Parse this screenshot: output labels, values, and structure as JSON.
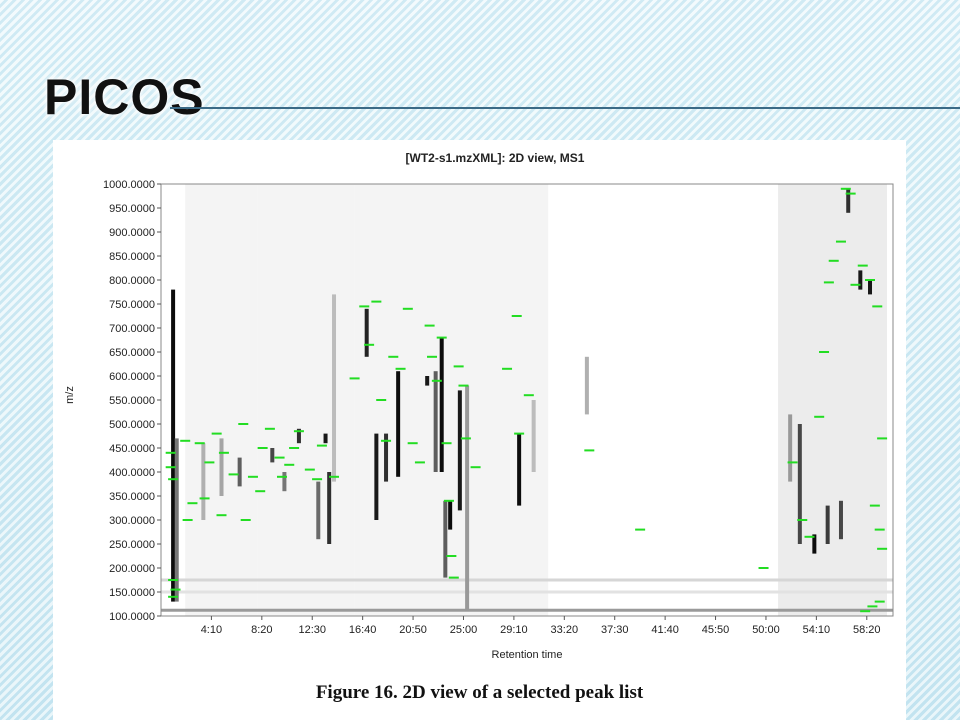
{
  "slide": {
    "title": "PICOS",
    "caption": "Figure 16. 2D view of a selected peak list"
  },
  "colors": {
    "peak_marker": "#22dd22",
    "intensity_dark": "#000000",
    "intensity_light": "#e6e6e6"
  },
  "chart_data": {
    "type": "heatmap",
    "title": "[WT2-s1.mzXML]: 2D view, MS1",
    "xlabel": "Retention time",
    "ylabel": "m/z",
    "xlim": [
      0,
      60.5
    ],
    "ylim": [
      100,
      1000
    ],
    "x_ticks": [
      {
        "value": 4.1667,
        "label": "4:10"
      },
      {
        "value": 8.3333,
        "label": "8:20"
      },
      {
        "value": 12.5,
        "label": "12:30"
      },
      {
        "value": 16.6667,
        "label": "16:40"
      },
      {
        "value": 20.8333,
        "label": "20:50"
      },
      {
        "value": 25.0,
        "label": "25:00"
      },
      {
        "value": 29.1667,
        "label": "29:10"
      },
      {
        "value": 33.3333,
        "label": "33:20"
      },
      {
        "value": 37.5,
        "label": "37:30"
      },
      {
        "value": 41.6667,
        "label": "41:40"
      },
      {
        "value": 45.8333,
        "label": "45:50"
      },
      {
        "value": 50.0,
        "label": "50:00"
      },
      {
        "value": 54.1667,
        "label": "54:10"
      },
      {
        "value": 58.3333,
        "label": "58:20"
      }
    ],
    "y_ticks": [
      {
        "value": 1000,
        "label": "1000.0000"
      },
      {
        "value": 950,
        "label": "950.0000"
      },
      {
        "value": 900,
        "label": "900.0000"
      },
      {
        "value": 850,
        "label": "850.0000"
      },
      {
        "value": 800,
        "label": "800.0000"
      },
      {
        "value": 750,
        "label": "750.0000"
      },
      {
        "value": 700,
        "label": "700.0000"
      },
      {
        "value": 650,
        "label": "650.0000"
      },
      {
        "value": 600,
        "label": "600.0000"
      },
      {
        "value": 550,
        "label": "550.0000"
      },
      {
        "value": 500,
        "label": "500.0000"
      },
      {
        "value": 450,
        "label": "450.0000"
      },
      {
        "value": 400,
        "label": "400.0000"
      },
      {
        "value": 350,
        "label": "350.0000"
      },
      {
        "value": 300,
        "label": "300.0000"
      },
      {
        "value": 250,
        "label": "250.0000"
      },
      {
        "value": 200,
        "label": "200.0000"
      },
      {
        "value": 150,
        "label": "150.0000"
      },
      {
        "value": 100,
        "label": "100.0000"
      }
    ],
    "intensity_streaks": [
      {
        "rt": 1.0,
        "mz_low": 130,
        "mz_high": 780,
        "shade": 0.95
      },
      {
        "rt": 1.3,
        "mz_low": 130,
        "mz_high": 470,
        "shade": 0.5
      },
      {
        "rt": 3.5,
        "mz_low": 300,
        "mz_high": 460,
        "shade": 0.25
      },
      {
        "rt": 5.0,
        "mz_low": 350,
        "mz_high": 470,
        "shade": 0.3
      },
      {
        "rt": 6.5,
        "mz_low": 370,
        "mz_high": 430,
        "shade": 0.6
      },
      {
        "rt": 9.2,
        "mz_low": 420,
        "mz_high": 450,
        "shade": 0.7
      },
      {
        "rt": 10.2,
        "mz_low": 360,
        "mz_high": 400,
        "shade": 0.5
      },
      {
        "rt": 11.4,
        "mz_low": 460,
        "mz_high": 490,
        "shade": 0.8
      },
      {
        "rt": 13.0,
        "mz_low": 260,
        "mz_high": 380,
        "shade": 0.55
      },
      {
        "rt": 13.6,
        "mz_low": 460,
        "mz_high": 480,
        "shade": 0.9
      },
      {
        "rt": 13.9,
        "mz_low": 250,
        "mz_high": 400,
        "shade": 0.8
      },
      {
        "rt": 14.3,
        "mz_low": 380,
        "mz_high": 770,
        "shade": 0.2
      },
      {
        "rt": 17.0,
        "mz_low": 640,
        "mz_high": 740,
        "shade": 0.85
      },
      {
        "rt": 17.8,
        "mz_low": 300,
        "mz_high": 480,
        "shade": 0.9
      },
      {
        "rt": 18.6,
        "mz_low": 380,
        "mz_high": 480,
        "shade": 0.8
      },
      {
        "rt": 19.6,
        "mz_low": 390,
        "mz_high": 610,
        "shade": 0.95
      },
      {
        "rt": 22.0,
        "mz_low": 580,
        "mz_high": 600,
        "shade": 0.9
      },
      {
        "rt": 22.7,
        "mz_low": 400,
        "mz_high": 610,
        "shade": 0.6
      },
      {
        "rt": 23.2,
        "mz_low": 400,
        "mz_high": 680,
        "shade": 0.95
      },
      {
        "rt": 23.5,
        "mz_low": 180,
        "mz_high": 340,
        "shade": 0.6
      },
      {
        "rt": 23.9,
        "mz_low": 280,
        "mz_high": 340,
        "shade": 0.95
      },
      {
        "rt": 24.7,
        "mz_low": 320,
        "mz_high": 570,
        "shade": 0.9
      },
      {
        "rt": 25.3,
        "mz_low": 110,
        "mz_high": 580,
        "shade": 0.35
      },
      {
        "rt": 29.6,
        "mz_low": 330,
        "mz_high": 480,
        "shade": 0.95
      },
      {
        "rt": 30.8,
        "mz_low": 400,
        "mz_high": 550,
        "shade": 0.2
      },
      {
        "rt": 35.2,
        "mz_low": 520,
        "mz_high": 640,
        "shade": 0.25
      },
      {
        "rt": 52.0,
        "mz_low": 380,
        "mz_high": 520,
        "shade": 0.35
      },
      {
        "rt": 52.8,
        "mz_low": 250,
        "mz_high": 500,
        "shade": 0.7
      },
      {
        "rt": 54.0,
        "mz_low": 230,
        "mz_high": 270,
        "shade": 0.95
      },
      {
        "rt": 55.1,
        "mz_low": 250,
        "mz_high": 330,
        "shade": 0.75
      },
      {
        "rt": 56.2,
        "mz_low": 260,
        "mz_high": 340,
        "shade": 0.7
      },
      {
        "rt": 56.8,
        "mz_low": 940,
        "mz_high": 990,
        "shade": 0.8
      },
      {
        "rt": 57.8,
        "mz_low": 780,
        "mz_high": 820,
        "shade": 0.9
      },
      {
        "rt": 58.6,
        "mz_low": 770,
        "mz_high": 800,
        "shade": 0.9
      }
    ],
    "peak_markers": [
      {
        "rt": 0.8,
        "mz": 440
      },
      {
        "rt": 0.8,
        "mz": 410
      },
      {
        "rt": 1.0,
        "mz": 385
      },
      {
        "rt": 1.0,
        "mz": 175
      },
      {
        "rt": 1.2,
        "mz": 155
      },
      {
        "rt": 1.0,
        "mz": 140
      },
      {
        "rt": 2.0,
        "mz": 465
      },
      {
        "rt": 2.6,
        "mz": 335
      },
      {
        "rt": 2.2,
        "mz": 300
      },
      {
        "rt": 3.2,
        "mz": 460
      },
      {
        "rt": 4.0,
        "mz": 420
      },
      {
        "rt": 3.6,
        "mz": 345
      },
      {
        "rt": 4.6,
        "mz": 480
      },
      {
        "rt": 5.2,
        "mz": 440
      },
      {
        "rt": 5.0,
        "mz": 310
      },
      {
        "rt": 6.0,
        "mz": 395
      },
      {
        "rt": 6.8,
        "mz": 500
      },
      {
        "rt": 7.0,
        "mz": 300
      },
      {
        "rt": 7.6,
        "mz": 390
      },
      {
        "rt": 8.4,
        "mz": 450
      },
      {
        "rt": 8.2,
        "mz": 360
      },
      {
        "rt": 9.0,
        "mz": 490
      },
      {
        "rt": 9.8,
        "mz": 430
      },
      {
        "rt": 10.0,
        "mz": 390
      },
      {
        "rt": 10.6,
        "mz": 415
      },
      {
        "rt": 11.0,
        "mz": 450
      },
      {
        "rt": 11.4,
        "mz": 485
      },
      {
        "rt": 12.3,
        "mz": 405
      },
      {
        "rt": 12.9,
        "mz": 385
      },
      {
        "rt": 13.3,
        "mz": 455
      },
      {
        "rt": 14.3,
        "mz": 390
      },
      {
        "rt": 16.0,
        "mz": 595
      },
      {
        "rt": 16.8,
        "mz": 745
      },
      {
        "rt": 17.2,
        "mz": 665
      },
      {
        "rt": 17.8,
        "mz": 755
      },
      {
        "rt": 18.2,
        "mz": 550
      },
      {
        "rt": 18.6,
        "mz": 465
      },
      {
        "rt": 19.2,
        "mz": 640
      },
      {
        "rt": 19.8,
        "mz": 615
      },
      {
        "rt": 20.4,
        "mz": 740
      },
      {
        "rt": 20.8,
        "mz": 460
      },
      {
        "rt": 21.4,
        "mz": 420
      },
      {
        "rt": 22.2,
        "mz": 705
      },
      {
        "rt": 22.4,
        "mz": 640
      },
      {
        "rt": 22.8,
        "mz": 590
      },
      {
        "rt": 23.2,
        "mz": 680
      },
      {
        "rt": 23.6,
        "mz": 460
      },
      {
        "rt": 23.8,
        "mz": 340
      },
      {
        "rt": 24.0,
        "mz": 225
      },
      {
        "rt": 24.2,
        "mz": 180
      },
      {
        "rt": 24.6,
        "mz": 620
      },
      {
        "rt": 25.0,
        "mz": 580
      },
      {
        "rt": 25.2,
        "mz": 470
      },
      {
        "rt": 26.0,
        "mz": 410
      },
      {
        "rt": 28.6,
        "mz": 615
      },
      {
        "rt": 29.4,
        "mz": 725
      },
      {
        "rt": 29.6,
        "mz": 480
      },
      {
        "rt": 30.4,
        "mz": 560
      },
      {
        "rt": 35.4,
        "mz": 445
      },
      {
        "rt": 39.6,
        "mz": 280
      },
      {
        "rt": 49.8,
        "mz": 200
      },
      {
        "rt": 52.2,
        "mz": 420
      },
      {
        "rt": 53.0,
        "mz": 300
      },
      {
        "rt": 53.6,
        "mz": 265
      },
      {
        "rt": 54.4,
        "mz": 515
      },
      {
        "rt": 54.8,
        "mz": 650
      },
      {
        "rt": 55.2,
        "mz": 795
      },
      {
        "rt": 55.6,
        "mz": 840
      },
      {
        "rt": 56.2,
        "mz": 880
      },
      {
        "rt": 56.6,
        "mz": 990
      },
      {
        "rt": 57.0,
        "mz": 980
      },
      {
        "rt": 57.4,
        "mz": 790
      },
      {
        "rt": 58.0,
        "mz": 830
      },
      {
        "rt": 58.6,
        "mz": 800
      },
      {
        "rt": 59.2,
        "mz": 745
      },
      {
        "rt": 59.6,
        "mz": 470
      },
      {
        "rt": 59.0,
        "mz": 330
      },
      {
        "rt": 59.4,
        "mz": 280
      },
      {
        "rt": 59.6,
        "mz": 240
      },
      {
        "rt": 59.4,
        "mz": 130
      },
      {
        "rt": 58.8,
        "mz": 120
      },
      {
        "rt": 58.2,
        "mz": 110
      }
    ],
    "grid": false
  }
}
